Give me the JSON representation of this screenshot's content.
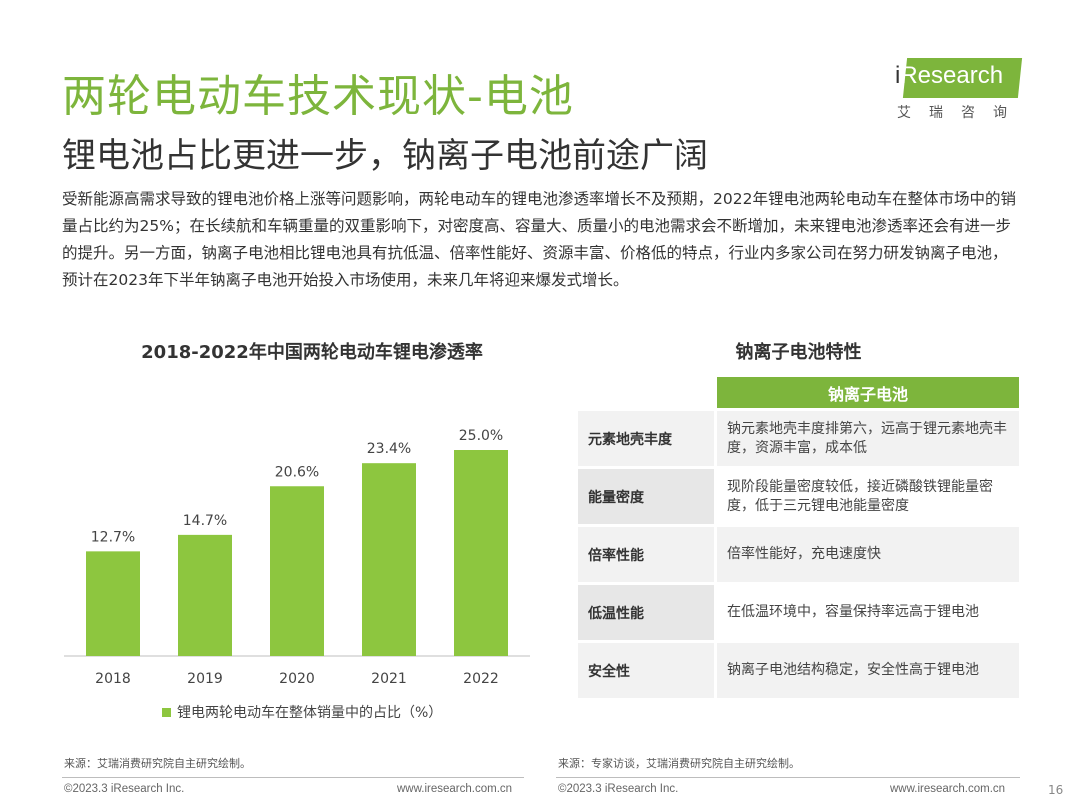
{
  "header": {
    "title": "两轮电动车技术现状-电池",
    "subtitle": "锂电池占比更进一步，钠离子电池前途广阔"
  },
  "logo": {
    "text_i": "i",
    "text_main": "Research",
    "cn": "艾瑞咨询"
  },
  "intro": "受新能源高需求导致的锂电池价格上涨等问题影响，两轮电动车的锂电池渗透率增长不及预期，2022年锂电池两轮电动车在整体市场中的销量占比约为25%；在长续航和车辆重量的双重影响下，对密度高、容量大、质量小的电池需求会不断增加，未来锂电池渗透率还会有进一步的提升。另一方面，钠离子电池相比锂电池具有抗低温、倍率性能好、资源丰富、价格低的特点，行业内多家公司在努力研发钠离子电池，预计在2023年下半年钠离子电池开始投入市场使用，未来几年将迎来爆发式增长。",
  "chart_data": {
    "type": "bar",
    "title": "2018-2022年中国两轮电动车锂电渗透率",
    "categories": [
      "2018",
      "2019",
      "2020",
      "2021",
      "2022"
    ],
    "series": [
      {
        "name": "锂电两轮电动车在整体销量中的占比（%）",
        "values": [
          12.7,
          14.7,
          20.6,
          23.4,
          25.0
        ]
      }
    ],
    "data_labels": [
      "12.7%",
      "14.7%",
      "20.6%",
      "23.4%",
      "25.0%"
    ],
    "ylim": [
      0,
      25.0
    ],
    "grid": false,
    "legend_position": "bottom",
    "bar_color": "#8DC63F"
  },
  "table": {
    "title": "钠离子电池特性",
    "column_header": "钠离子电池",
    "rows": [
      {
        "attr": "元素地壳丰度",
        "desc": "钠元素地壳丰度排第六，远高于锂元素地壳丰度，资源丰富，成本低"
      },
      {
        "attr": "能量密度",
        "desc": "现阶段能量密度较低，接近磷酸铁锂能量密度，低于三元锂电池能量密度"
      },
      {
        "attr": "倍率性能",
        "desc": "倍率性能好，充电速度快"
      },
      {
        "attr": "低温性能",
        "desc": "在低温环境中，容量保持率远高于锂电池"
      },
      {
        "attr": "安全性",
        "desc": "钠离子电池结构稳定，安全性高于锂电池"
      }
    ]
  },
  "footer": {
    "source_left": "来源：艾瑞消费研究院自主研究绘制。",
    "source_right": "来源：专家访谈，艾瑞消费研究院自主研究绘制。",
    "copyright_left": "©2023.3 iResearch Inc.",
    "url_left": "www.iresearch.com.cn",
    "copyright_right": "©2023.3 iResearch Inc.",
    "url_right": "www.iresearch.com.cn",
    "page": "16"
  }
}
